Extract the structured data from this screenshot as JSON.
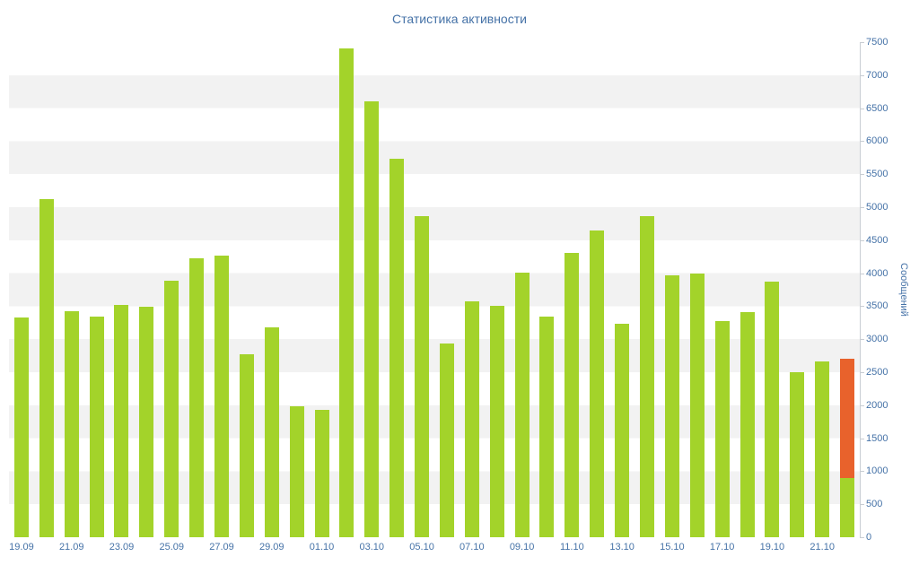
{
  "colors": {
    "bar": "#A3D32A",
    "bar_today": "#E8622C",
    "axis_text": "#4572A7",
    "title_text": "#4572A7",
    "stripe": "#F2F2F2",
    "axis_line": "#C8CDD3"
  },
  "chart_data": {
    "type": "bar",
    "title": "Статистика активности",
    "xlabel": "",
    "ylabel": "Сообщений",
    "ylim": [
      0,
      7500
    ],
    "ytick_step": 500,
    "yticks": [
      0,
      500,
      1000,
      1500,
      2000,
      2500,
      3000,
      3500,
      4000,
      4500,
      5000,
      5500,
      6000,
      6500,
      7000,
      7500
    ],
    "yaxis_position": "right",
    "grid": "horizontal-stripes",
    "legend_position": "none",
    "categories": [
      "19.09",
      "20.09",
      "21.09",
      "22.09",
      "23.09",
      "24.09",
      "25.09",
      "26.09",
      "27.09",
      "28.09",
      "29.09",
      "30.09",
      "01.10",
      "02.10",
      "03.10",
      "04.10",
      "05.10",
      "06.10",
      "07.10",
      "08.10",
      "09.10",
      "10.10",
      "11.10",
      "12.10",
      "13.10",
      "14.10",
      "15.10",
      "16.10",
      "17.10",
      "18.10",
      "19.10",
      "20.10",
      "21.10",
      "22.10"
    ],
    "xtick_labels": [
      "19.09",
      "21.09",
      "23.09",
      "25.09",
      "27.09",
      "29.09",
      "01.10",
      "03.10",
      "05.10",
      "07.10",
      "09.10",
      "11.10",
      "13.10",
      "15.10",
      "17.10",
      "19.10",
      "21.10"
    ],
    "values": [
      3330,
      5120,
      3420,
      3340,
      3520,
      3490,
      3890,
      4230,
      4270,
      2770,
      3180,
      1990,
      1930,
      7400,
      6600,
      5740,
      4870,
      2930,
      3570,
      3510,
      4010,
      3340,
      4310,
      4650,
      3240,
      4860,
      3970,
      3990,
      3270,
      3410,
      3870,
      2500,
      2660,
      2700
    ],
    "last_bar": {
      "category": "22.10",
      "base_value": 900,
      "total": 2700
    }
  }
}
